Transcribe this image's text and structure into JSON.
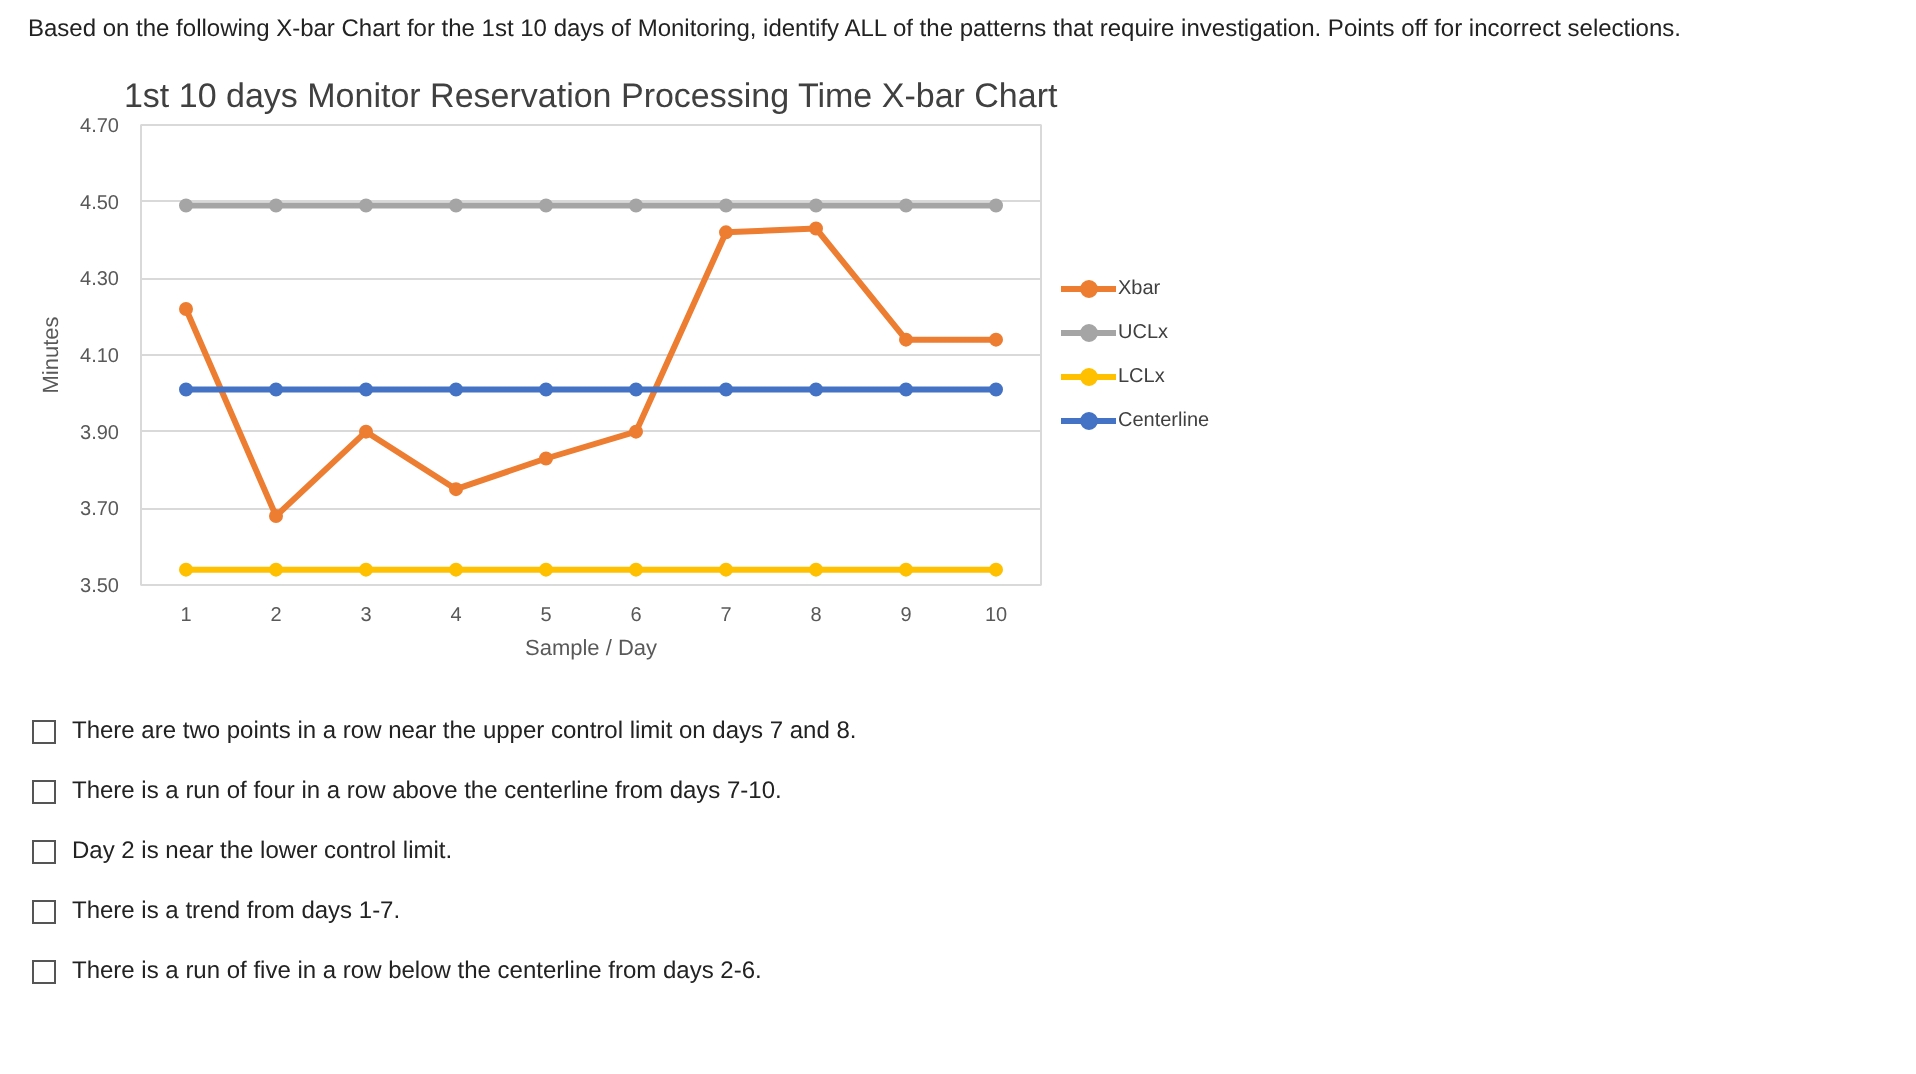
{
  "chart_data": {
    "type": "line",
    "title": "1st 10 days Monitor Reservation Processing Time X-bar Chart",
    "xlabel": "Sample / Day",
    "ylabel": "Minutes",
    "categories": [
      "1",
      "2",
      "3",
      "4",
      "5",
      "6",
      "7",
      "8",
      "9",
      "10"
    ],
    "series": [
      {
        "name": "Xbar",
        "color": "#ed7d31",
        "values": [
          4.22,
          3.68,
          3.9,
          3.75,
          3.83,
          3.9,
          4.42,
          4.43,
          4.14,
          4.14
        ]
      },
      {
        "name": "UCLx",
        "color": "#a5a5a5",
        "values": [
          4.49,
          4.49,
          4.49,
          4.49,
          4.49,
          4.49,
          4.49,
          4.49,
          4.49,
          4.49
        ]
      },
      {
        "name": "LCLx",
        "color": "#ffc000",
        "values": [
          3.54,
          3.54,
          3.54,
          3.54,
          3.54,
          3.54,
          3.54,
          3.54,
          3.54,
          3.54
        ]
      },
      {
        "name": "Centerline",
        "color": "#4472c4",
        "values": [
          4.01,
          4.01,
          4.01,
          4.01,
          4.01,
          4.01,
          4.01,
          4.01,
          4.01,
          4.01
        ]
      }
    ],
    "ylim": [
      3.5,
      4.7
    ],
    "yticks": [
      {
        "value": 3.5,
        "label": "3.50"
      },
      {
        "value": 3.7,
        "label": "3.70"
      },
      {
        "value": 3.9,
        "label": "3.90"
      },
      {
        "value": 4.1,
        "label": "4.10"
      },
      {
        "value": 4.3,
        "label": "4.30"
      },
      {
        "value": 4.5,
        "label": "4.50"
      },
      {
        "value": 4.7,
        "label": "4.70"
      }
    ],
    "grid": "y",
    "legend": "right",
    "marker": "circle",
    "line_style": "solid",
    "annotations": [
      "Based on the following X-bar Chart for the 1st 10 days of Monitoring, identify ALL of the patterns that require investigation. Points off for incorrect selections.",
      "There are two points in a row near the upper control limit on days 7 and 8.",
      "There is a run of four in a row above the centerline from days 7-10.",
      "Day 2 is near the lower control limit.",
      "There is a trend from days 1-7.",
      "There is a run of five in a row below the centerline from days 2-6."
    ]
  }
}
